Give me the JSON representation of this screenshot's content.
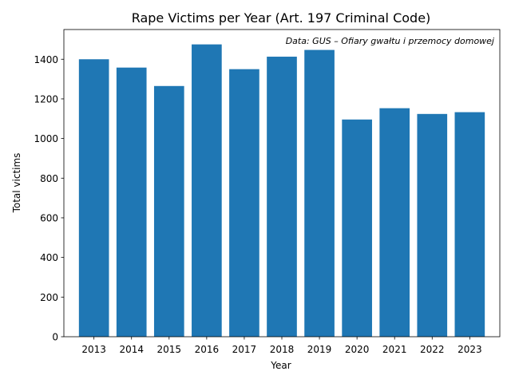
{
  "chart_data": {
    "type": "bar",
    "title": "Rape Victims per Year (Art. 197 Criminal Code)",
    "annotation": "Data: GUS – Ofiary gwałtu i przemocy domowej",
    "xlabel": "Year",
    "ylabel": "Total victims",
    "categories": [
      "2013",
      "2014",
      "2015",
      "2016",
      "2017",
      "2018",
      "2019",
      "2020",
      "2021",
      "2022",
      "2023"
    ],
    "values": [
      1400,
      1358,
      1265,
      1475,
      1350,
      1413,
      1447,
      1096,
      1153,
      1124,
      1133
    ],
    "ylim": [
      0,
      1550
    ],
    "yticks": [
      0,
      200,
      400,
      600,
      800,
      1000,
      1200,
      1400
    ],
    "grid": false,
    "colors": {
      "bar": "#1f77b4",
      "axis": "#000000"
    }
  }
}
